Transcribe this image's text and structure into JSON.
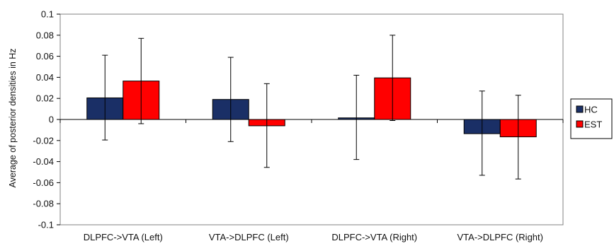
{
  "chart_data": {
    "type": "bar",
    "title": "",
    "xlabel": "",
    "ylabel": "Average of posterior densities in Hz",
    "ylim": [
      -0.1,
      0.1
    ],
    "yticks": [
      "0.1",
      "0.08",
      "0.06",
      "0.04",
      "0.02",
      "0",
      "-0.02",
      "-0.04",
      "-0.06",
      "-0.08",
      "-0.1"
    ],
    "grid": false,
    "legend_position": "right",
    "categories": [
      "DLPFC->VTA (Left)",
      "VTA->DLPFC (Left)",
      "DLPFC->VTA (Right)",
      "VTA->DLPFC (Right)"
    ],
    "series": [
      {
        "name": "HC",
        "color": "#1a2f66",
        "values": [
          0.0205,
          0.019,
          0.0015,
          -0.0135
        ],
        "err_upper": [
          0.061,
          0.059,
          0.042,
          0.027
        ],
        "err_lower": [
          -0.0195,
          -0.021,
          -0.038,
          -0.053
        ]
      },
      {
        "name": "EST",
        "color": "#ff0000",
        "values": [
          0.0365,
          -0.006,
          0.0395,
          -0.0165
        ],
        "err_upper": [
          0.077,
          0.034,
          0.08,
          0.023
        ],
        "err_lower": [
          -0.004,
          -0.0455,
          -0.001,
          -0.0565
        ]
      }
    ]
  }
}
